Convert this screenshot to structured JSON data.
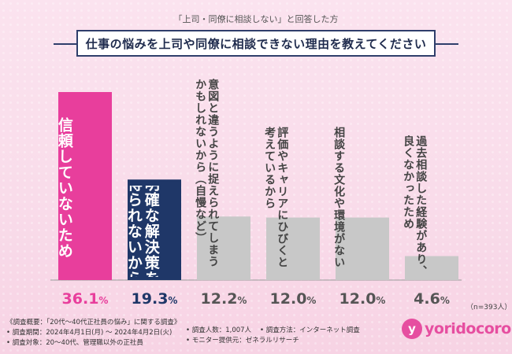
{
  "header": {
    "subtitle": "「上司・同僚に相談しない」と回答した方",
    "title": "仕事の悩みを上司や同僚に相談できない理由を教えてください"
  },
  "chart_data": {
    "type": "bar",
    "categories": [
      "信頼していないため",
      "明確な解決策を得られないから",
      "意図と違うように捉えられてしまうかもしれないから（自慢など）",
      "評価やキャリアにひびくと考えているから",
      "相談する文化や環境がない",
      "過去相談した経験があり、良くなかったため"
    ],
    "label_lines": [
      [
        "信頼していないため"
      ],
      [
        "明確な解決策を",
        "得られないから"
      ],
      [
        "意図と違うように捉えられてしまう",
        "かもしれないから（自慢など）"
      ],
      [
        "評価やキャリアにひびくと",
        "考えているから"
      ],
      [
        "相談する文化や環境がない"
      ],
      [
        "過去相談した経験があり、",
        "良くなかったため"
      ]
    ],
    "values": [
      36.1,
      19.3,
      12.2,
      12.0,
      12.0,
      4.6
    ],
    "value_labels": [
      "36.1",
      "19.3",
      "12.2",
      "12.0",
      "12.0",
      "4.6"
    ],
    "unit": "%",
    "colors": [
      "#e83e9c",
      "#1f3768",
      "#c8c8c8",
      "#c8c8c8",
      "#c8c8c8",
      "#c8c8c8"
    ],
    "value_colors": [
      "#e83e9c",
      "#1f3768",
      "#555555",
      "#555555",
      "#555555",
      "#555555"
    ],
    "label_colors": [
      "#ffffff",
      "#ffffff",
      "#444444",
      "#444444",
      "#444444",
      "#444444"
    ],
    "ylim": [
      0,
      40
    ],
    "n_note": "（n=393人）"
  },
  "footer": {
    "lines": [
      "《調査概要：「20代〜40代正社員の悩み」に関する調査》",
      "• 調査期間：2024年4月1日(月) 〜 2024年4月2日(火)",
      "• 調査対象：20〜40代、管理職以外の正社員"
    ],
    "col2": [
      "• 調査人数：1,007人",
      "• モニター提供元：ゼネラルリサーチ"
    ],
    "col3": [
      "• 調査方法：インターネット調査"
    ]
  },
  "logo": {
    "text": "yoridocoro",
    "icon_glyph": "y"
  }
}
